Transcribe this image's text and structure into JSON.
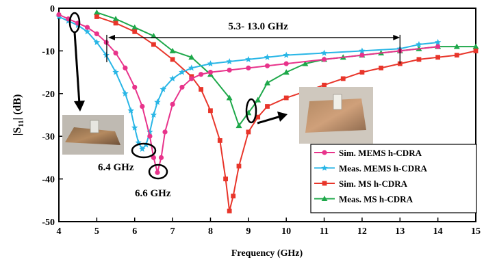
{
  "chart_data": {
    "type": "line",
    "xlabel": "Frequency (GHz)",
    "ylabel_main": "|S",
    "ylabel_sub": "11",
    "ylabel_tail": "| (dB)",
    "xlim": [
      4,
      15
    ],
    "ylim": [
      -50,
      0
    ],
    "x_ticks": [
      4,
      5,
      6,
      7,
      8,
      9,
      10,
      11,
      12,
      13,
      14,
      15
    ],
    "y_ticks": [
      0,
      -10,
      -20,
      -30,
      -40,
      -50
    ],
    "grid": false,
    "legend_position": "bottom-right",
    "series": [
      {
        "name": "Sim. MEMS h-CDRA",
        "color": "#e8338b",
        "marker": "circle",
        "x": [
          4.0,
          4.25,
          4.5,
          4.75,
          5.0,
          5.25,
          5.5,
          5.75,
          6.0,
          6.2,
          6.4,
          6.5,
          6.6,
          6.7,
          6.8,
          7.0,
          7.25,
          7.5,
          7.75,
          8.0,
          8.5,
          9.0,
          9.5,
          10.0,
          11.0,
          12.0,
          13.0,
          14.0
        ],
        "y": [
          -1.5,
          -2.5,
          -3.5,
          -4.5,
          -6.0,
          -8.0,
          -10.5,
          -14.0,
          -18.5,
          -23.0,
          -30.0,
          -35.0,
          -38.5,
          -35.0,
          -29.0,
          -22.5,
          -18.5,
          -16.5,
          -15.5,
          -15.0,
          -14.5,
          -14.0,
          -13.5,
          -13.0,
          -12.0,
          -11.0,
          -10.0,
          -9.0
        ]
      },
      {
        "name": "Meas. MEMS h-CDRA",
        "color": "#29b6e6",
        "marker": "star",
        "x": [
          4.0,
          4.25,
          4.5,
          4.75,
          5.0,
          5.25,
          5.5,
          5.75,
          5.9,
          6.0,
          6.1,
          6.2,
          6.3,
          6.4,
          6.5,
          6.6,
          6.75,
          7.0,
          7.25,
          7.5,
          8.0,
          8.5,
          9.0,
          9.5,
          10.0,
          11.0,
          12.0,
          13.0,
          13.5,
          14.0
        ],
        "y": [
          -2.0,
          -3.0,
          -4.0,
          -5.5,
          -8.0,
          -11.0,
          -15.0,
          -20.0,
          -24.0,
          -28.0,
          -31.5,
          -33.0,
          -32.0,
          -29.0,
          -25.0,
          -22.0,
          -19.0,
          -16.5,
          -15.0,
          -14.0,
          -13.0,
          -12.5,
          -12.0,
          -11.5,
          -11.0,
          -10.5,
          -10.0,
          -9.5,
          -8.5,
          -8.0
        ]
      },
      {
        "name": "Sim. MS h-CDRA",
        "color": "#e8352a",
        "marker": "square",
        "x": [
          5.0,
          5.5,
          6.0,
          6.5,
          7.0,
          7.5,
          7.75,
          8.0,
          8.25,
          8.4,
          8.5,
          8.6,
          8.75,
          9.0,
          9.25,
          9.5,
          10.0,
          10.5,
          11.0,
          11.5,
          12.0,
          12.5,
          13.0,
          13.5,
          14.0,
          14.5,
          15.0
        ],
        "y": [
          -2.0,
          -3.5,
          -5.5,
          -8.5,
          -12.0,
          -16.0,
          -19.0,
          -24.0,
          -31.0,
          -40.0,
          -47.5,
          -44.0,
          -37.0,
          -29.0,
          -25.5,
          -23.0,
          -21.0,
          -19.5,
          -18.0,
          -16.5,
          -15.0,
          -14.0,
          -13.0,
          -12.0,
          -11.5,
          -11.0,
          -10.0
        ]
      },
      {
        "name": "Meas. MS h-CDRA",
        "color": "#1ea84a",
        "marker": "triangle",
        "x": [
          5.0,
          5.5,
          6.0,
          6.5,
          7.0,
          7.5,
          8.0,
          8.5,
          8.75,
          9.0,
          9.25,
          9.5,
          10.0,
          10.5,
          11.0,
          11.5,
          12.0,
          12.5,
          13.0,
          13.5,
          14.0,
          14.5,
          15.0
        ],
        "y": [
          -1.0,
          -2.5,
          -4.5,
          -6.5,
          -10.0,
          -11.5,
          -15.5,
          -21.0,
          -27.5,
          -24.5,
          -21.5,
          -17.5,
          -15.0,
          -13.0,
          -12.0,
          -11.5,
          -11.0,
          -10.5,
          -10.0,
          -9.5,
          -9.0,
          -9.0,
          -9.0
        ]
      }
    ],
    "annotations": {
      "band_label": "5.3- 13.0 GHz",
      "band_range": [
        5.3,
        13.0
      ],
      "band_level": -8.0,
      "label_64": "6.4 GHz",
      "label_66": "6.6 GHz"
    }
  }
}
